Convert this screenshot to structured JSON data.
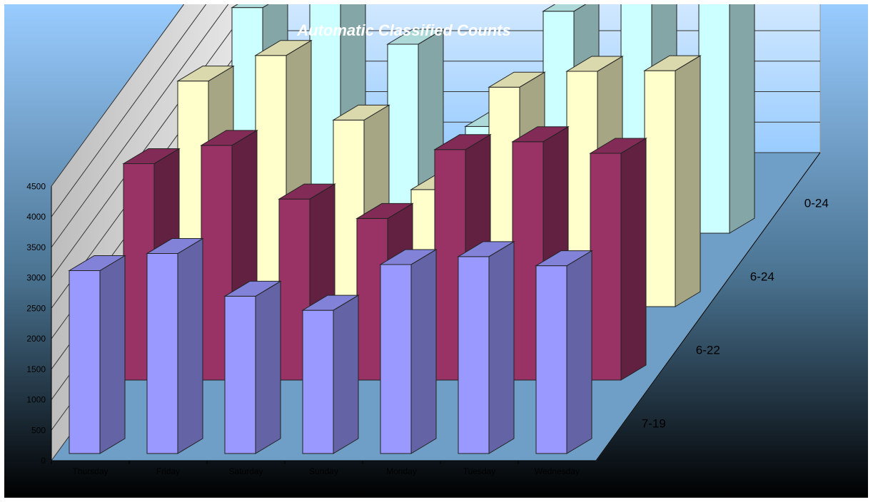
{
  "chart_data": {
    "type": "bar",
    "variant": "3d-column",
    "title": "Automatic Classified Counts",
    "categories": [
      "Thursday",
      "Friday",
      "Saturday",
      "Sunday",
      "Monday",
      "Tuesday",
      "Wednesday"
    ],
    "series": [
      {
        "name": "7-19",
        "values": [
          3000,
          3280,
          2580,
          2350,
          3100,
          3230,
          3080
        ],
        "color": "#9999ff"
      },
      {
        "name": "6-22",
        "values": [
          3550,
          3850,
          2970,
          2650,
          3780,
          3910,
          3720
        ],
        "color": "#993366"
      },
      {
        "name": "6-24",
        "values": [
          3700,
          4120,
          3060,
          1920,
          3600,
          3860,
          3870
        ],
        "color": "#ffffcc"
      },
      {
        "name": "0-24",
        "values": [
          3700,
          4080,
          3100,
          1750,
          3640,
          3850,
          3880
        ],
        "color": "#ccffff"
      }
    ],
    "yticks": [
      0,
      500,
      1000,
      1500,
      2000,
      2500,
      3000,
      3500,
      4000,
      4500
    ],
    "ylim": [
      0,
      4500
    ],
    "grid": true,
    "background_gradient": [
      "#99ccff",
      "#000000"
    ]
  }
}
